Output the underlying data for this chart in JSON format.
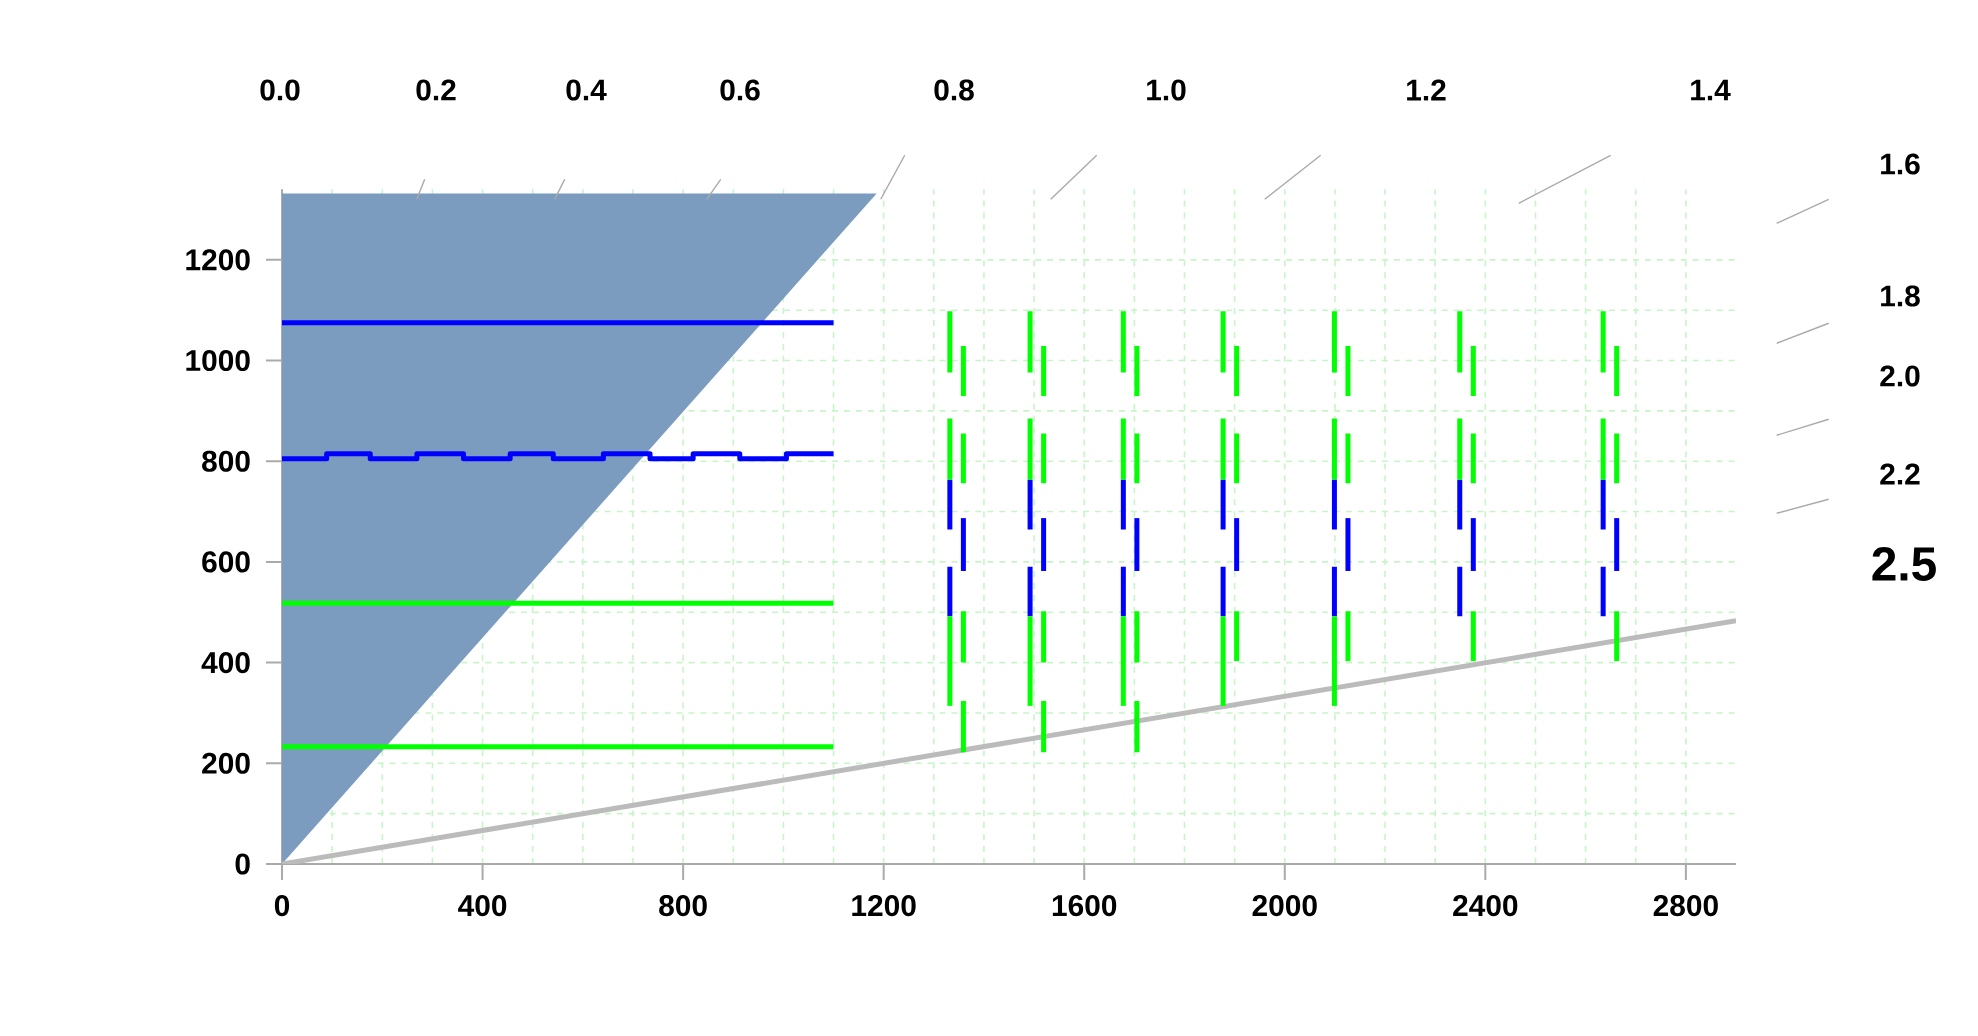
{
  "chart_data": {
    "type": "line",
    "xlim": [
      0,
      2900
    ],
    "ylim": [
      0,
      1340
    ],
    "xticks": [
      0,
      400,
      800,
      1200,
      1600,
      2000,
      2400,
      2800
    ],
    "yticks": [
      0,
      200,
      400,
      600,
      800,
      1000,
      1200
    ],
    "grid": true,
    "series": [
      {
        "type": "area",
        "color": "#7b9cbf",
        "x": [
          0,
          0,
          1186
        ],
        "values": [
          0,
          1332,
          1332
        ]
      },
      {
        "color": "#0000ff",
        "x": [
          0,
          1100
        ],
        "values": [
          1075,
          1075
        ]
      },
      {
        "type": "step",
        "color": "#0000ff",
        "x": [
          0,
          89,
          176,
          269,
          362,
          455,
          541,
          641,
          734,
          820,
          913,
          1006,
          1100
        ],
        "values": [
          805,
          815,
          805,
          815,
          805,
          815,
          805,
          815,
          805,
          815,
          805,
          815,
          815
        ]
      },
      {
        "color": "#00ff00",
        "x": [
          0,
          1100
        ],
        "values": [
          518,
          518
        ]
      },
      {
        "color": "#00ff00",
        "x": [
          0,
          1100
        ],
        "values": [
          233,
          233
        ]
      },
      {
        "color": "#bbbbbb",
        "x": [
          0,
          2900
        ],
        "values": [
          0,
          483
        ]
      },
      {
        "color": "#00ff00",
        "line_style": "dashed",
        "x": [
          1332,
          1332
        ],
        "values": [
          1098,
          763
        ]
      },
      {
        "color": "#0000ff",
        "line_style": "dashed",
        "x": [
          1332,
          1332
        ],
        "values": [
          763,
          492
        ]
      },
      {
        "color": "#00ff00",
        "line_style": "dashed",
        "x": [
          1332,
          1332
        ],
        "values": [
          492,
          314
        ]
      },
      {
        "color": "#00ff00",
        "line_style": "dashed",
        "x": [
          1359,
          1359
        ],
        "values": [
          1029,
          756
        ]
      },
      {
        "color": "#0000ff",
        "line_style": "dashed",
        "x": [
          1359,
          1359
        ],
        "values": [
          687,
          582
        ]
      },
      {
        "color": "#00ff00",
        "line_style": "dashed",
        "x": [
          1359,
          1359
        ],
        "values": [
          502,
          222
        ]
      },
      {
        "color": "#00ff00",
        "line_style": "dashed",
        "x": [
          1492,
          1492
        ],
        "values": [
          1098,
          763
        ]
      },
      {
        "color": "#0000ff",
        "line_style": "dashed",
        "x": [
          1492,
          1492
        ],
        "values": [
          763,
          492
        ]
      },
      {
        "color": "#00ff00",
        "line_style": "dashed",
        "x": [
          1492,
          1492
        ],
        "values": [
          492,
          314
        ]
      },
      {
        "color": "#00ff00",
        "line_style": "dashed",
        "x": [
          1519,
          1519
        ],
        "values": [
          1029,
          756
        ]
      },
      {
        "color": "#0000ff",
        "line_style": "dashed",
        "x": [
          1519,
          1519
        ],
        "values": [
          687,
          582
        ]
      },
      {
        "color": "#00ff00",
        "line_style": "dashed",
        "x": [
          1519,
          1519
        ],
        "values": [
          502,
          222
        ]
      },
      {
        "color": "#00ff00",
        "line_style": "dashed",
        "x": [
          1678,
          1678
        ],
        "values": [
          1098,
          763
        ]
      },
      {
        "color": "#0000ff",
        "line_style": "dashed",
        "x": [
          1678,
          1678
        ],
        "values": [
          763,
          492
        ]
      },
      {
        "color": "#00ff00",
        "line_style": "dashed",
        "x": [
          1678,
          1678
        ],
        "values": [
          492,
          314
        ]
      },
      {
        "color": "#00ff00",
        "line_style": "dashed",
        "x": [
          1705,
          1705
        ],
        "values": [
          1029,
          756
        ]
      },
      {
        "color": "#0000ff",
        "line_style": "dashed",
        "x": [
          1705,
          1705
        ],
        "values": [
          687,
          582
        ]
      },
      {
        "color": "#00ff00",
        "line_style": "dashed",
        "x": [
          1705,
          1705
        ],
        "values": [
          502,
          222
        ]
      },
      {
        "color": "#00ff00",
        "line_style": "dashed",
        "x": [
          1877,
          1877
        ],
        "values": [
          1098,
          763
        ]
      },
      {
        "color": "#0000ff",
        "line_style": "dashed",
        "x": [
          1877,
          1877
        ],
        "values": [
          763,
          492
        ]
      },
      {
        "color": "#00ff00",
        "line_style": "dashed",
        "x": [
          1877,
          1877
        ],
        "values": [
          492,
          314
        ]
      },
      {
        "color": "#00ff00",
        "line_style": "dashed",
        "x": [
          1904,
          1904
        ],
        "values": [
          1029,
          756
        ]
      },
      {
        "color": "#0000ff",
        "line_style": "dashed",
        "x": [
          1904,
          1904
        ],
        "values": [
          687,
          582
        ]
      },
      {
        "color": "#00ff00",
        "line_style": "dashed",
        "x": [
          1904,
          1904
        ],
        "values": [
          502,
          403
        ]
      },
      {
        "color": "#00ff00",
        "line_style": "dashed",
        "x": [
          2099,
          2099
        ],
        "values": [
          1098,
          763
        ]
      },
      {
        "color": "#0000ff",
        "line_style": "dashed",
        "x": [
          2099,
          2099
        ],
        "values": [
          763,
          492
        ]
      },
      {
        "color": "#00ff00",
        "line_style": "dashed",
        "x": [
          2099,
          2099
        ],
        "values": [
          492,
          314
        ]
      },
      {
        "color": "#00ff00",
        "line_style": "dashed",
        "x": [
          2126,
          2126
        ],
        "values": [
          1029,
          756
        ]
      },
      {
        "color": "#0000ff",
        "line_style": "dashed",
        "x": [
          2126,
          2126
        ],
        "values": [
          687,
          582
        ]
      },
      {
        "color": "#00ff00",
        "line_style": "dashed",
        "x": [
          2126,
          2126
        ],
        "values": [
          502,
          403
        ]
      },
      {
        "color": "#00ff00",
        "line_style": "dashed",
        "x": [
          2349,
          2349
        ],
        "values": [
          1098,
          763
        ]
      },
      {
        "color": "#0000ff",
        "line_style": "dashed",
        "x": [
          2349,
          2349
        ],
        "values": [
          763,
          492
        ]
      },
      {
        "color": "#00ff00",
        "line_style": "dashed",
        "x": [
          2376,
          2376
        ],
        "values": [
          1029,
          756
        ]
      },
      {
        "color": "#0000ff",
        "line_style": "dashed",
        "x": [
          2376,
          2376
        ],
        "values": [
          687,
          582
        ]
      },
      {
        "color": "#00ff00",
        "line_style": "dashed",
        "x": [
          2376,
          2376
        ],
        "values": [
          502,
          403
        ]
      },
      {
        "color": "#00ff00",
        "line_style": "dashed",
        "x": [
          2635,
          2635
        ],
        "values": [
          1098,
          763
        ]
      },
      {
        "color": "#0000ff",
        "line_style": "dashed",
        "x": [
          2635,
          2635
        ],
        "values": [
          763,
          492
        ]
      },
      {
        "color": "#00ff00",
        "line_style": "dashed",
        "x": [
          2662,
          2662
        ],
        "values": [
          1029,
          756
        ]
      },
      {
        "color": "#0000ff",
        "line_style": "dashed",
        "x": [
          2662,
          2662
        ],
        "values": [
          687,
          582
        ]
      },
      {
        "color": "#00ff00",
        "line_style": "dashed",
        "x": [
          2662,
          2662
        ],
        "values": [
          502,
          403
        ]
      }
    ],
    "annotations": [
      "0.0",
      "0.2",
      "0.4",
      "0.6",
      "0.8",
      "1.0",
      "1.2",
      "1.4",
      "1.6",
      "1.8",
      "2.0",
      "2.2",
      "2.5"
    ]
  }
}
